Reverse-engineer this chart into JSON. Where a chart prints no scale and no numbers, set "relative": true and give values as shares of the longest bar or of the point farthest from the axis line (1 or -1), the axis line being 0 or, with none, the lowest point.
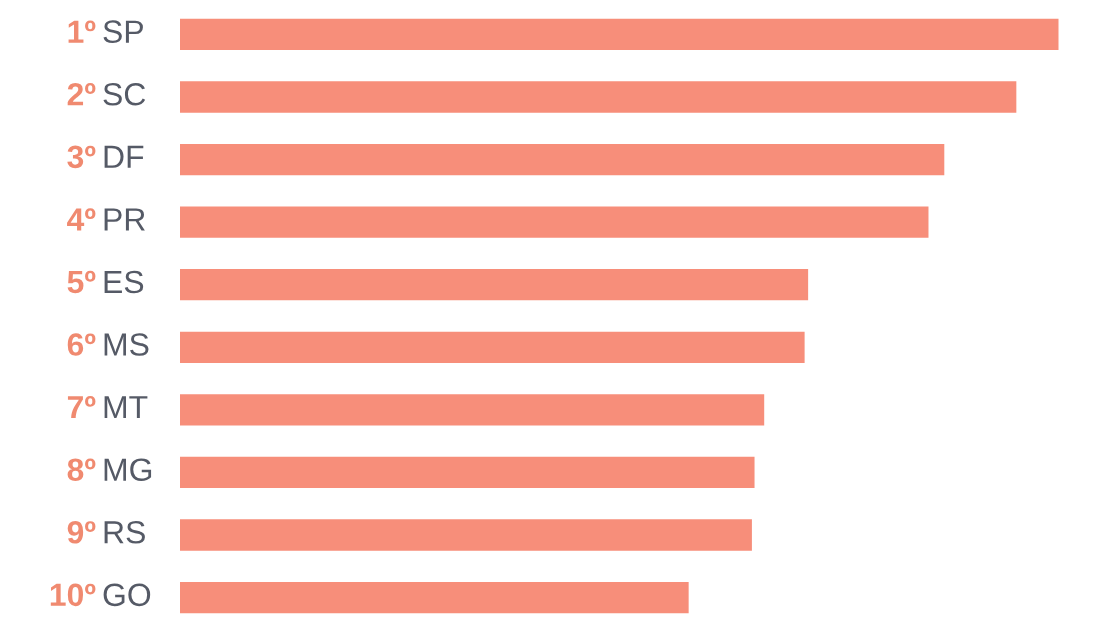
{
  "chart_data": {
    "type": "bar",
    "orientation": "horizontal",
    "relative": true,
    "categories": [
      "1º SP",
      "2º SC",
      "3º DF",
      "4º PR",
      "5º ES",
      "6º MS",
      "7º MT",
      "8º MG",
      "9º RS",
      "10º GO"
    ],
    "values": [
      1,
      0.952,
      0.87,
      0.852,
      0.715,
      0.711,
      0.665,
      0.654,
      0.651,
      0.579
    ],
    "color": "#f78e7a"
  }
}
